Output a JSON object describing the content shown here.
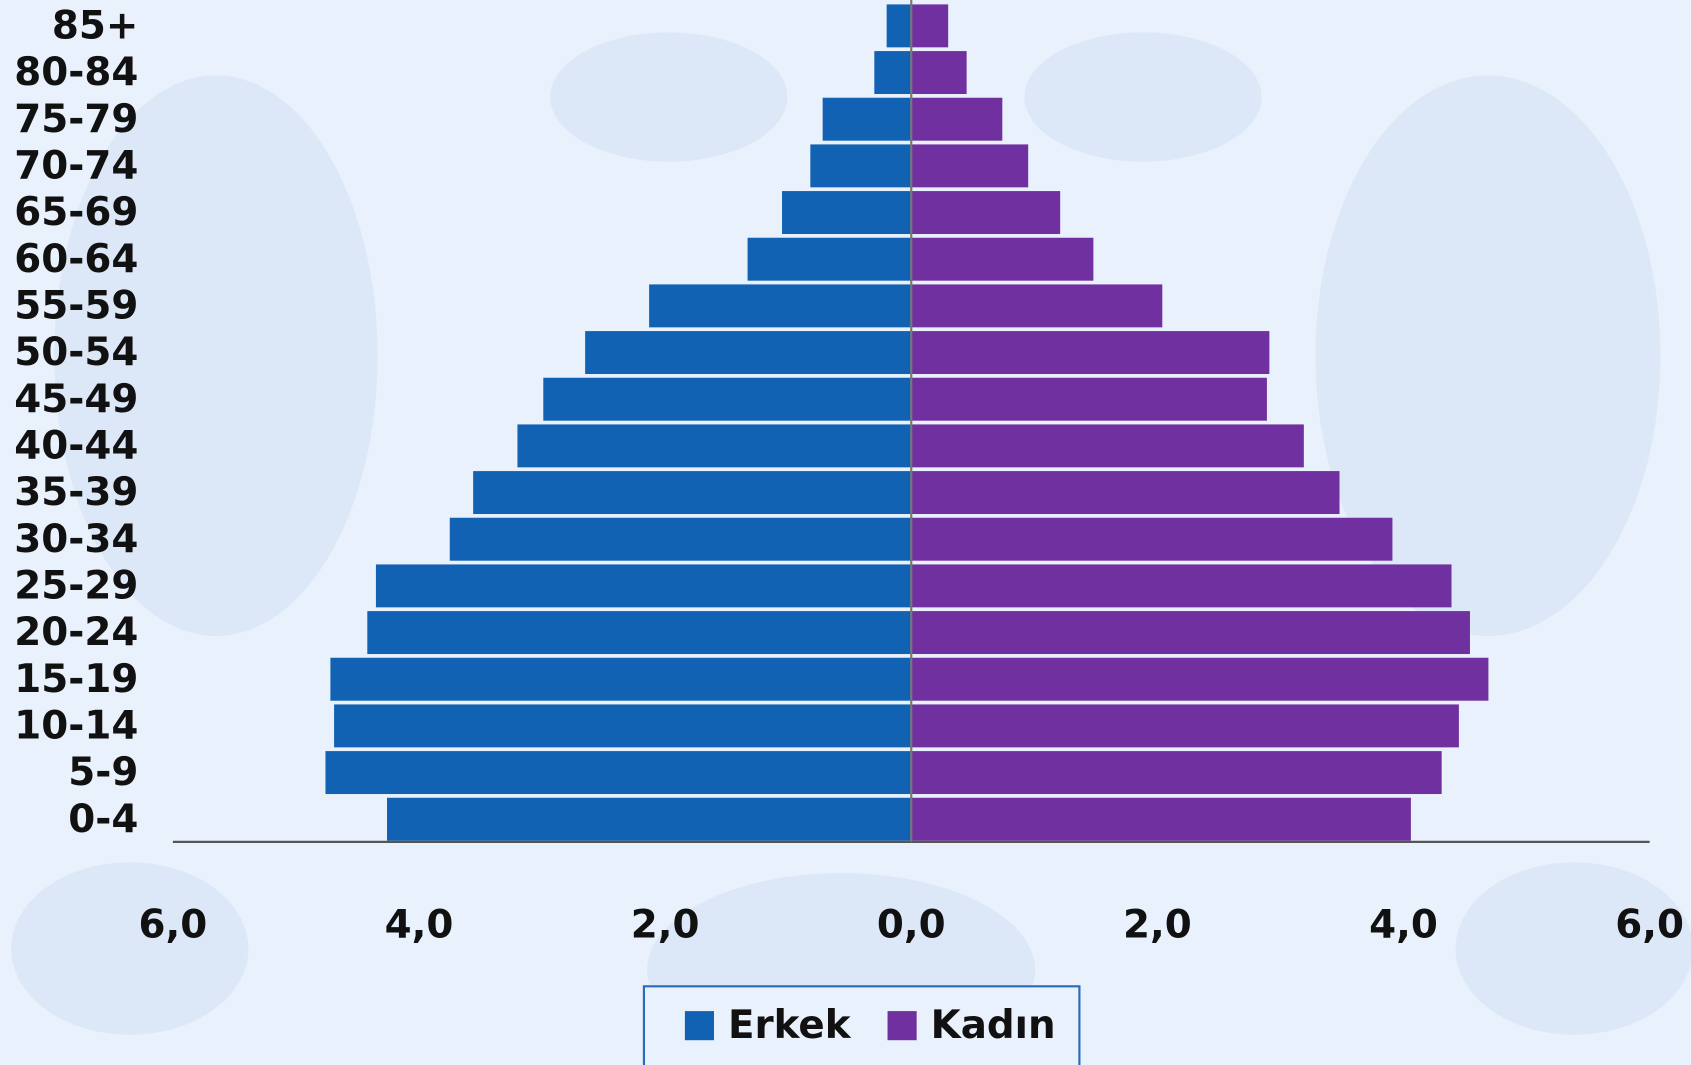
{
  "chart_data": {
    "type": "pyramid",
    "categories": [
      "0-4",
      "5-9",
      "10-14",
      "15-19",
      "20-24",
      "25-29",
      "30-34",
      "35-39",
      "40-44",
      "45-49",
      "50-54",
      "55-59",
      "60-64",
      "65-69",
      "70-74",
      "75-79",
      "80-84",
      "85+"
    ],
    "series": [
      {
        "name": "Erkek",
        "color": "#1162b3",
        "values": [
          -4.26,
          -4.76,
          -4.69,
          -4.72,
          -4.42,
          -4.35,
          -3.75,
          -3.56,
          -3.2,
          -2.99,
          -2.65,
          -2.13,
          -1.33,
          -1.05,
          -0.82,
          -0.72,
          -0.3,
          -0.2
        ]
      },
      {
        "name": "Kadın",
        "color": "#7030a0",
        "values": [
          4.06,
          4.31,
          4.45,
          4.69,
          4.54,
          4.39,
          3.91,
          3.48,
          3.19,
          2.89,
          2.91,
          2.04,
          1.48,
          1.21,
          0.95,
          0.74,
          0.45,
          0.3
        ]
      }
    ],
    "xlim": [
      -6,
      6
    ],
    "xticks": [
      {
        "value": -6,
        "label": "6,0"
      },
      {
        "value": -4,
        "label": "4,0"
      },
      {
        "value": -2,
        "label": "2,0"
      },
      {
        "value": 0,
        "label": "0,0"
      },
      {
        "value": 2,
        "label": "2,0"
      },
      {
        "value": 4,
        "label": "4,0"
      },
      {
        "value": 6,
        "label": "6,0"
      }
    ],
    "legend": "bottom"
  }
}
